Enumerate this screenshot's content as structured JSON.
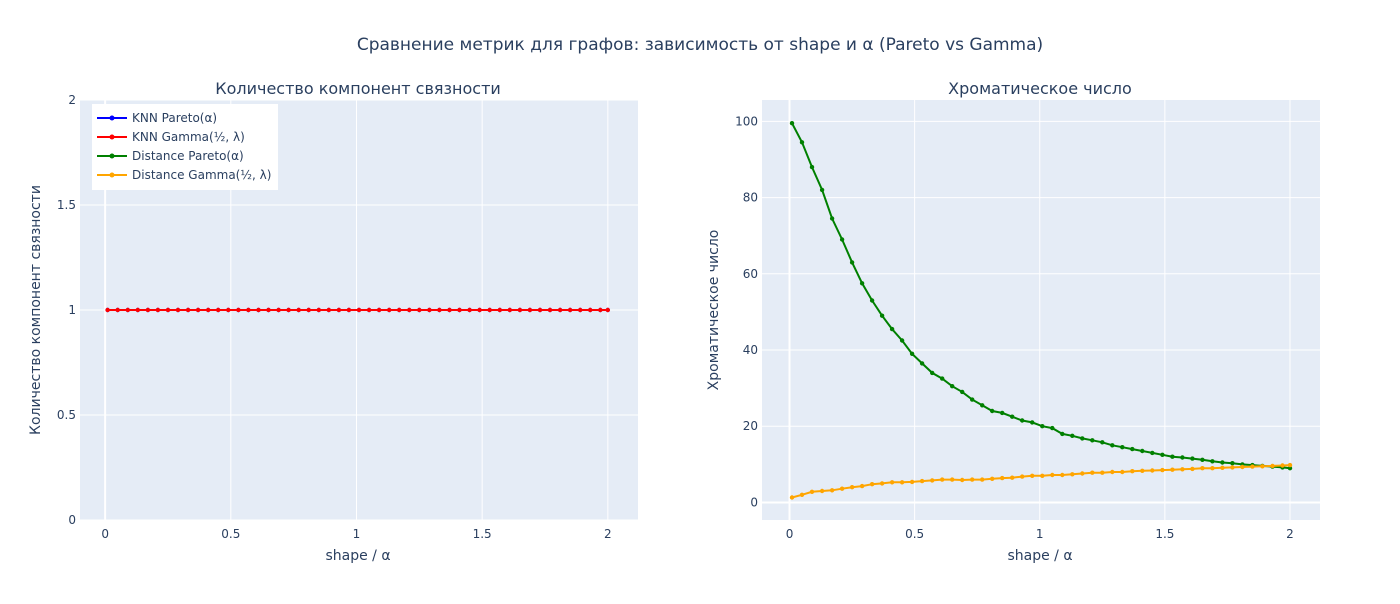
{
  "figure_title": "Сравнение метрик для графов: зависимость от shape и α (Pareto vs Gamma)",
  "colors": {
    "knn_pareto": "#0000ff",
    "knn_gamma": "#ff0000",
    "distance_pareto": "#008000",
    "distance_gamma": "#ffa500",
    "plot_bg": "#e5ecf6",
    "grid": "#ffffff",
    "text": "#2a3f5f"
  },
  "legend": {
    "placement": "top-left of first subplot",
    "items": [
      {
        "label": "KNN Pareto(α)",
        "color": "#0000ff"
      },
      {
        "label": "KNN Gamma(½, λ)",
        "color": "#ff0000"
      },
      {
        "label": "Distance Pareto(α)",
        "color": "#008000"
      },
      {
        "label": "Distance Gamma(½, λ)",
        "color": "#ffa500"
      }
    ]
  },
  "chart_data": [
    {
      "type": "line",
      "title": "Количество компонент связности",
      "xlabel": "shape / α",
      "ylabel": "Количество компонент связности",
      "xlim": [
        -0.1,
        2.12
      ],
      "ylim": [
        0,
        2
      ],
      "xticks": [
        "0",
        "0.5",
        "1",
        "1.5",
        "2"
      ],
      "yticks": [
        "0",
        "0.5",
        "1",
        "1.5",
        "2"
      ],
      "grid": true,
      "x": [
        0.01,
        0.05,
        0.09,
        0.13,
        0.17,
        0.21,
        0.25,
        0.29,
        0.33,
        0.37,
        0.41,
        0.45,
        0.49,
        0.53,
        0.57,
        0.61,
        0.65,
        0.69,
        0.73,
        0.77,
        0.81,
        0.85,
        0.89,
        0.93,
        0.97,
        1.01,
        1.05,
        1.09,
        1.13,
        1.17,
        1.21,
        1.25,
        1.29,
        1.33,
        1.37,
        1.41,
        1.45,
        1.49,
        1.53,
        1.57,
        1.61,
        1.65,
        1.69,
        1.73,
        1.77,
        1.81,
        1.85,
        1.89,
        1.93,
        1.97,
        2.0
      ],
      "series": [
        {
          "name": "KNN Pareto(α)",
          "constant": 1
        },
        {
          "name": "KNN Gamma(½, λ)",
          "constant": 1
        }
      ]
    },
    {
      "type": "line",
      "title": "Хроматическое число",
      "xlabel": "shape / α",
      "ylabel": "Хроматическое число",
      "xlim": [
        -0.11,
        2.12
      ],
      "ylim": [
        -4.6,
        105.6
      ],
      "xticks": [
        "0",
        "0.5",
        "1",
        "1.5",
        "2"
      ],
      "yticks": [
        "0",
        "20",
        "40",
        "60",
        "80",
        "100"
      ],
      "grid": true,
      "x": [
        0.01,
        0.05,
        0.09,
        0.13,
        0.17,
        0.21,
        0.25,
        0.29,
        0.33,
        0.37,
        0.41,
        0.45,
        0.49,
        0.53,
        0.57,
        0.61,
        0.65,
        0.69,
        0.73,
        0.77,
        0.81,
        0.85,
        0.89,
        0.93,
        0.97,
        1.01,
        1.05,
        1.09,
        1.13,
        1.17,
        1.21,
        1.25,
        1.29,
        1.33,
        1.37,
        1.41,
        1.45,
        1.49,
        1.53,
        1.57,
        1.61,
        1.65,
        1.69,
        1.73,
        1.77,
        1.81,
        1.85,
        1.89,
        1.93,
        1.97,
        2.0
      ],
      "series": [
        {
          "name": "Distance Pareto(α)",
          "values": [
            99.5,
            94.5,
            88,
            82,
            74.5,
            69,
            63,
            57.5,
            53,
            49,
            45.5,
            42.5,
            39,
            36.5,
            34,
            32.5,
            30.5,
            29,
            27,
            25.5,
            24,
            23.5,
            22.5,
            21.5,
            21,
            20,
            19.5,
            18,
            17.5,
            16.8,
            16.3,
            15.8,
            15,
            14.5,
            14,
            13.5,
            13,
            12.5,
            12,
            11.8,
            11.5,
            11.2,
            10.8,
            10.5,
            10.3,
            10,
            9.8,
            9.6,
            9.4,
            9.2,
            9
          ]
        },
        {
          "name": "Distance Gamma(½, λ)",
          "values": [
            1.3,
            2,
            2.8,
            3,
            3.2,
            3.6,
            4,
            4.3,
            4.8,
            5,
            5.3,
            5.3,
            5.4,
            5.6,
            5.8,
            6,
            6,
            5.9,
            6,
            6,
            6.2,
            6.4,
            6.5,
            6.8,
            7,
            7,
            7.2,
            7.2,
            7.4,
            7.6,
            7.8,
            7.8,
            8,
            8,
            8.2,
            8.3,
            8.4,
            8.5,
            8.6,
            8.7,
            8.8,
            9,
            9,
            9.1,
            9.2,
            9.3,
            9.4,
            9.5,
            9.6,
            9.7,
            9.8
          ]
        }
      ]
    }
  ]
}
